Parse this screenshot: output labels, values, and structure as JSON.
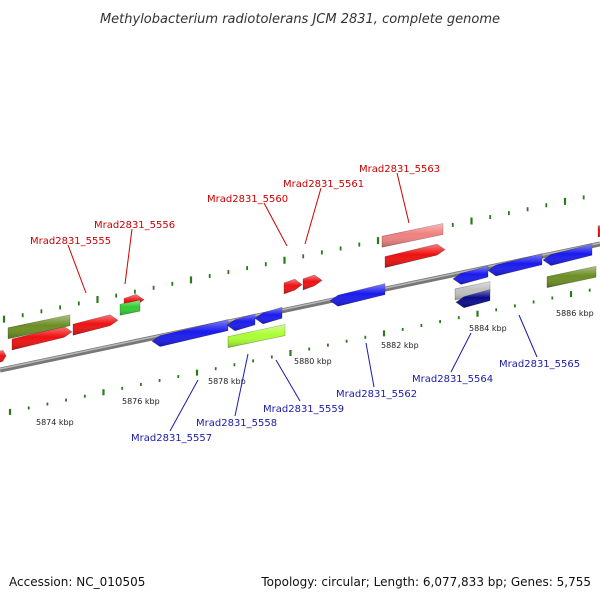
{
  "title": "Methylobacterium radiotolerans JCM 2831, complete genome",
  "footer": {
    "accession": "Accession: NC_010505",
    "summary": "Topology: circular; Length: 6,077,833 bp; Genes: 5,755"
  },
  "colors": {
    "backbone": "#888888",
    "tick": "#2a7a1a",
    "forward_label": "#cc0000",
    "reverse_label": "#1a1aaa",
    "red": "#ee1111",
    "pink": "#f08080",
    "blue": "#1a1aee",
    "navy": "#0a0a8a",
    "olive": "#6b8e23",
    "green": "#33cc33",
    "lime": "#aaff33",
    "gray": "#c0c0c0"
  },
  "scale_labels": [
    "5874 kbp",
    "5876 kbp",
    "5878 kbp",
    "5880 kbp",
    "5882 kbp",
    "5884 kbp",
    "5886 kbp"
  ],
  "forward_labels": [
    "Mrad2831_5555",
    "Mrad2831_5556",
    "Mrad2831_5560",
    "Mrad2831_5561",
    "Mrad2831_5563"
  ],
  "reverse_labels": [
    "Mrad2831_5557",
    "Mrad2831_5558",
    "Mrad2831_5559",
    "Mrad2831_5562",
    "Mrad2831_5564",
    "Mrad2831_5565"
  ]
}
